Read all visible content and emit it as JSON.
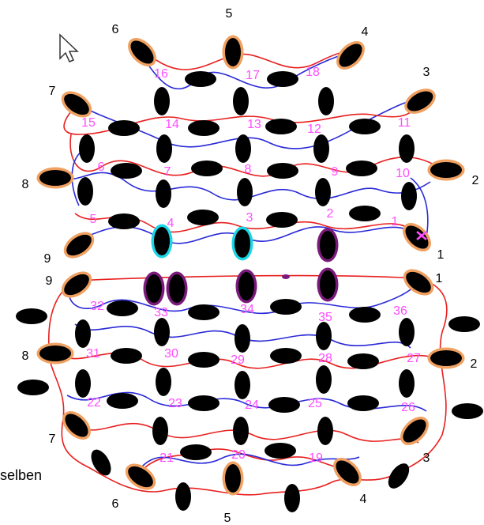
{
  "cut_text": "selben",
  "cursor_icon": "arrow-cursor-icon",
  "colors": {
    "thread_red": "#e8201f",
    "thread_blue": "#2a2ad8",
    "bead": "#000000",
    "halo_orange": "#f0a060",
    "halo_cyan": "#19d6e6",
    "halo_purple": "#7a1a7a",
    "pink_label": "#ff4dff"
  },
  "top_section": {
    "edge_labels": [
      "5",
      "4",
      "3",
      "2",
      "1",
      "9",
      "8",
      "7",
      "6"
    ],
    "pink_labels": [
      "1",
      "2",
      "3",
      "4",
      "5",
      "6",
      "7",
      "8",
      "9",
      "10",
      "11",
      "12",
      "13",
      "14",
      "15",
      "16",
      "17",
      "18"
    ]
  },
  "bottom_section": {
    "edge_labels": [
      "9",
      "1",
      "2",
      "3",
      "4",
      "5",
      "6",
      "7",
      "8"
    ],
    "pink_labels": [
      "19",
      "20",
      "21",
      "22",
      "23",
      "24",
      "25",
      "26",
      "27",
      "28",
      "29",
      "30",
      "31",
      "32",
      "33",
      "34",
      "35",
      "36"
    ]
  }
}
